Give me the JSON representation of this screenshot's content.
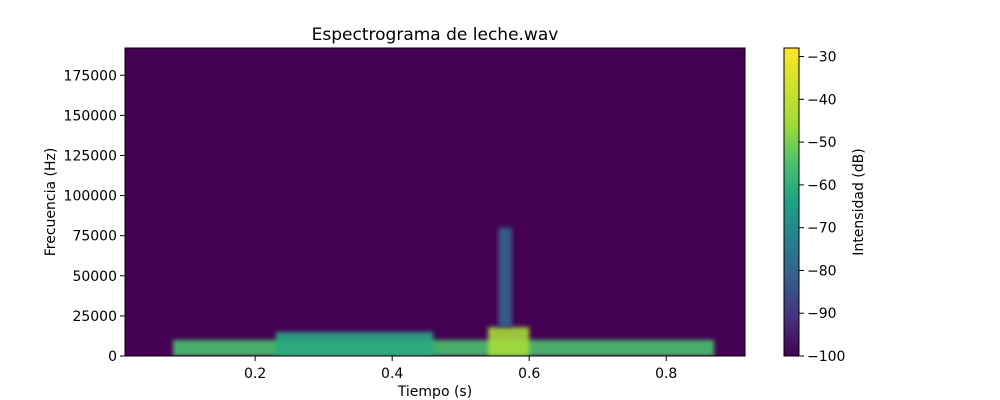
{
  "chart_data": {
    "type": "heatmap",
    "title": "Espectrograma de leche.wav",
    "xlabel": "Tiempo (s)",
    "ylabel": "Frecuencia (Hz)",
    "xlim": [
      0.01,
      0.915
    ],
    "ylim": [
      0,
      192000
    ],
    "x_ticks": [
      0.2,
      0.4,
      0.6,
      0.8
    ],
    "x_tick_labels": [
      "0.2",
      "0.4",
      "0.6",
      "0.8"
    ],
    "y_ticks": [
      0,
      25000,
      50000,
      75000,
      100000,
      125000,
      150000,
      175000
    ],
    "y_tick_labels": [
      "0",
      "25000",
      "50000",
      "75000",
      "100000",
      "125000",
      "150000",
      "175000"
    ],
    "colorbar": {
      "label": "Intensidad (dB)",
      "range": [
        -100,
        -28
      ],
      "ticks": [
        -100,
        -90,
        -80,
        -70,
        -60,
        -50,
        -40,
        -30
      ],
      "tick_labels": [
        "−100",
        "−90",
        "−80",
        "−70",
        "−60",
        "−50",
        "−40",
        "−30"
      ],
      "colormap": "viridis"
    },
    "background_db": -100,
    "energy_regions": [
      {
        "t_start": 0.08,
        "t_end": 0.87,
        "f_low": 0,
        "f_high": 10000,
        "db": -55
      },
      {
        "t_start": 0.23,
        "t_end": 0.46,
        "f_low": 0,
        "f_high": 15000,
        "db": -62
      },
      {
        "t_start": 0.54,
        "t_end": 0.6,
        "f_low": 0,
        "f_high": 18000,
        "db": -45
      },
      {
        "t_start": 0.555,
        "t_end": 0.575,
        "f_low": 18000,
        "f_high": 80000,
        "db": -80
      }
    ]
  }
}
